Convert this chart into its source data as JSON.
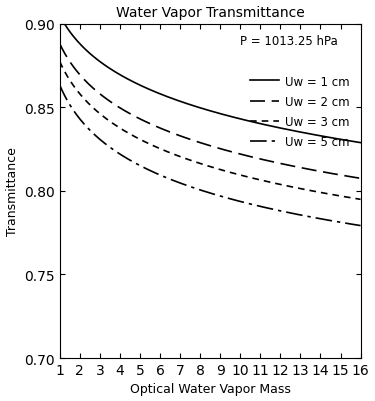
{
  "title": "Water Vapor Transmittance",
  "xlabel": "Optical Water Vapor Mass",
  "ylabel": "Transmittance",
  "xlim": [
    1,
    16
  ],
  "ylim": [
    0.7,
    0.9
  ],
  "xticks": [
    1,
    2,
    3,
    4,
    5,
    6,
    7,
    8,
    9,
    10,
    11,
    12,
    13,
    14,
    15,
    16
  ],
  "yticks": [
    0.7,
    0.75,
    0.8,
    0.85,
    0.9
  ],
  "pressure_label": "P = 1013.25 hPa",
  "series": [
    {
      "uw": 1,
      "label": "Uw = 1 cm",
      "lw": 1.2,
      "color": "#000000",
      "dash": "solid"
    },
    {
      "uw": 2,
      "label": "Uw = 2 cm",
      "lw": 1.2,
      "color": "#000000",
      "dash": "dashed_long"
    },
    {
      "uw": 3,
      "label": "Uw = 3 cm",
      "lw": 1.2,
      "color": "#000000",
      "dash": "dashed_short"
    },
    {
      "uw": 5,
      "label": "Uw = 5 cm",
      "lw": 1.2,
      "color": "#000000",
      "dash": "dashdot"
    }
  ],
  "background_color": "#ffffff",
  "figsize": [
    3.75,
    4.02
  ],
  "dpi": 100
}
